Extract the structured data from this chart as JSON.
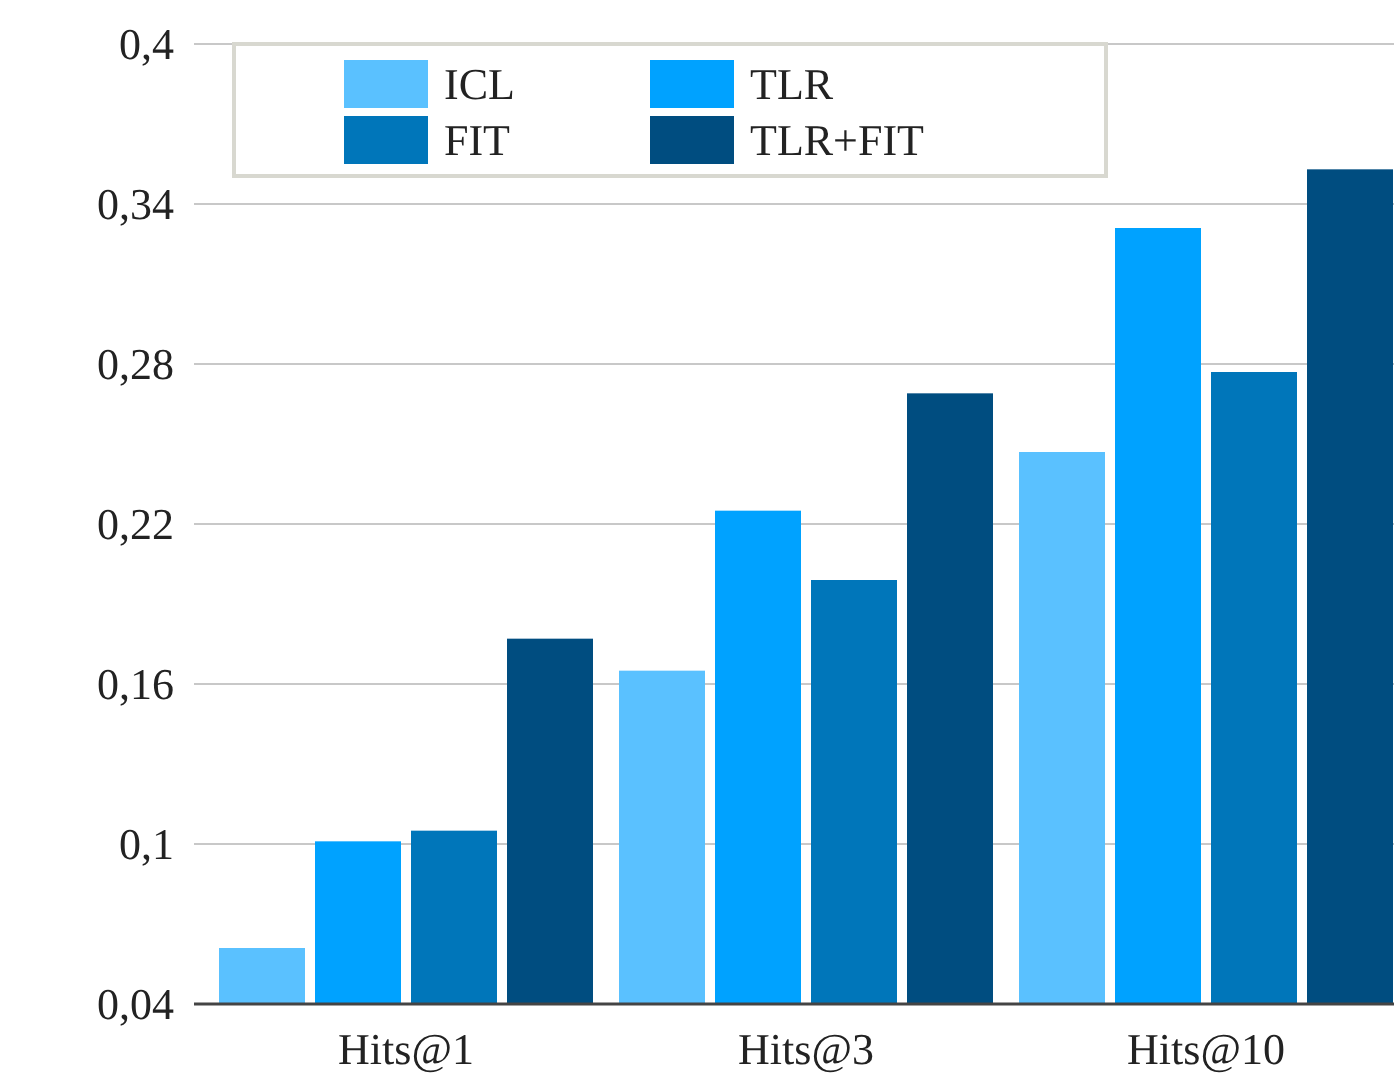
{
  "chart_data": {
    "type": "bar",
    "categories": [
      "Hits@1",
      "Hits@3",
      "Hits@10"
    ],
    "series": [
      {
        "name": "ICL",
        "color": "#5ac1ff",
        "values": [
          0.061,
          0.165,
          0.247
        ]
      },
      {
        "name": "TLR",
        "color": "#00a2ff",
        "values": [
          0.101,
          0.225,
          0.331
        ]
      },
      {
        "name": "FIT",
        "color": "#0076ba",
        "values": [
          0.105,
          0.199,
          0.277
        ]
      },
      {
        "name": "TLR+FIT",
        "color": "#004d80",
        "values": [
          0.177,
          0.269,
          0.353
        ]
      }
    ],
    "ylim": [
      0.04,
      0.4
    ],
    "yticks": [
      {
        "value": 0.04,
        "label": "0,04"
      },
      {
        "value": 0.1,
        "label": "0,1"
      },
      {
        "value": 0.16,
        "label": "0,16"
      },
      {
        "value": 0.22,
        "label": "0,22"
      },
      {
        "value": 0.28,
        "label": "0,28"
      },
      {
        "value": 0.34,
        "label": "0,34"
      },
      {
        "value": 0.4,
        "label": "0,4"
      }
    ],
    "grid": "y",
    "legend": "top left"
  }
}
